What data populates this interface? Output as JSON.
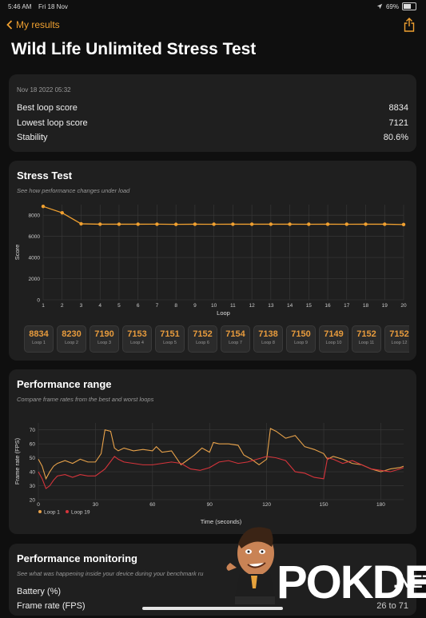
{
  "status": {
    "time": "5:46 AM",
    "date": "Fri 18 Nov",
    "battery": "69%",
    "battery_level": 0.69
  },
  "nav": {
    "back_label": "My results"
  },
  "title": "Wild Life Unlimited Stress Test",
  "summary": {
    "date": "Nov 18 2022 05:32",
    "rows": [
      {
        "label": "Best loop score",
        "value": "8834"
      },
      {
        "label": "Lowest loop score",
        "value": "7121"
      },
      {
        "label": "Stability",
        "value": "80.6%"
      }
    ]
  },
  "stress": {
    "title": "Stress Test",
    "subtitle": "See how performance changes under load",
    "loops": [
      {
        "score": "8834",
        "label": "Loop 1"
      },
      {
        "score": "8230",
        "label": "Loop 2"
      },
      {
        "score": "7190",
        "label": "Loop 3"
      },
      {
        "score": "7153",
        "label": "Loop 4"
      },
      {
        "score": "7151",
        "label": "Loop 5"
      },
      {
        "score": "7152",
        "label": "Loop 6"
      },
      {
        "score": "7154",
        "label": "Loop 7"
      },
      {
        "score": "7138",
        "label": "Loop 8"
      },
      {
        "score": "7150",
        "label": "Loop 9"
      },
      {
        "score": "7149",
        "label": "Loop 10"
      },
      {
        "score": "7152",
        "label": "Loop 11"
      },
      {
        "score": "7152",
        "label": "Loop 12"
      }
    ]
  },
  "performance": {
    "title": "Performance range",
    "subtitle": "Compare frame rates from the best and worst loops",
    "legend": [
      "Loop 1",
      "Loop 19"
    ]
  },
  "monitoring": {
    "title": "Performance monitoring",
    "subtitle": "See what was happening inside your device during your benchmark ru",
    "rows": [
      {
        "label": "Battery (%)",
        "value": ""
      },
      {
        "label": "Frame rate (FPS)",
        "value": "26 to 71"
      }
    ]
  },
  "watermark": "POKDE.NET",
  "colors": {
    "accent": "#f0a030",
    "loop1": "#e8a24a",
    "loop19": "#d6343b"
  },
  "chart_data": [
    {
      "type": "line",
      "xlabel": "Loop",
      "ylabel": "Score",
      "x": [
        1,
        2,
        3,
        4,
        5,
        6,
        7,
        8,
        9,
        10,
        11,
        12,
        13,
        14,
        15,
        16,
        17,
        18,
        19,
        20
      ],
      "series": [
        {
          "values": [
            8834,
            8230,
            7190,
            7153,
            7151,
            7152,
            7154,
            7138,
            7150,
            7149,
            7152,
            7152,
            7150,
            7150,
            7148,
            7150,
            7149,
            7150,
            7150,
            7121
          ]
        }
      ],
      "yticks": [
        0,
        2000,
        4000,
        6000,
        8000
      ],
      "ylim": [
        0,
        9000
      ],
      "xlim": [
        1,
        20
      ],
      "grid": true
    },
    {
      "type": "line",
      "xlabel": "Time (seconds)",
      "ylabel": "Frame rate (FPS)",
      "xticks": [
        0,
        30,
        60,
        90,
        120,
        150,
        180
      ],
      "yticks": [
        20,
        30,
        40,
        50,
        60,
        70
      ],
      "ylim": [
        20,
        75
      ],
      "xlim": [
        0,
        192
      ],
      "grid": true,
      "legend": "bottom-left",
      "series": [
        {
          "name": "Loop 1",
          "x": [
            0,
            2,
            4,
            6,
            8,
            10,
            14,
            18,
            22,
            26,
            30,
            33,
            35,
            38,
            40,
            42,
            45,
            50,
            55,
            60,
            62,
            65,
            70,
            75,
            78,
            82,
            86,
            90,
            92,
            95,
            100,
            105,
            108,
            112,
            116,
            120,
            122,
            125,
            130,
            135,
            140,
            145,
            150,
            152,
            155,
            160,
            165,
            170,
            175,
            180,
            185,
            190,
            192
          ],
          "y": [
            49,
            44,
            35,
            40,
            44,
            46,
            48,
            46,
            49,
            47,
            47,
            53,
            70,
            69,
            57,
            55,
            57,
            55,
            56,
            55,
            58,
            54,
            55,
            45,
            48,
            52,
            57,
            54,
            61,
            60,
            60,
            59,
            52,
            49,
            45,
            49,
            71,
            69,
            64,
            66,
            58,
            56,
            53,
            49,
            51,
            49,
            46,
            45,
            42,
            40,
            42,
            43,
            44
          ]
        },
        {
          "name": "Loop 19",
          "x": [
            0,
            2,
            4,
            6,
            8,
            10,
            14,
            18,
            22,
            26,
            30,
            35,
            40,
            42,
            45,
            50,
            55,
            60,
            65,
            70,
            75,
            80,
            85,
            90,
            95,
            100,
            105,
            110,
            115,
            120,
            125,
            130,
            135,
            140,
            145,
            150,
            152,
            155,
            160,
            165,
            170,
            175,
            180,
            185,
            190,
            192
          ],
          "y": [
            40,
            35,
            28,
            30,
            34,
            37,
            38,
            36,
            38,
            37,
            37,
            42,
            51,
            49,
            47,
            46,
            45,
            45,
            46,
            47,
            46,
            42,
            41,
            43,
            47,
            48,
            46,
            47,
            49,
            51,
            50,
            48,
            40,
            39,
            36,
            35,
            50,
            49,
            46,
            48,
            45,
            42,
            41,
            40,
            42,
            43
          ]
        }
      ]
    }
  ]
}
